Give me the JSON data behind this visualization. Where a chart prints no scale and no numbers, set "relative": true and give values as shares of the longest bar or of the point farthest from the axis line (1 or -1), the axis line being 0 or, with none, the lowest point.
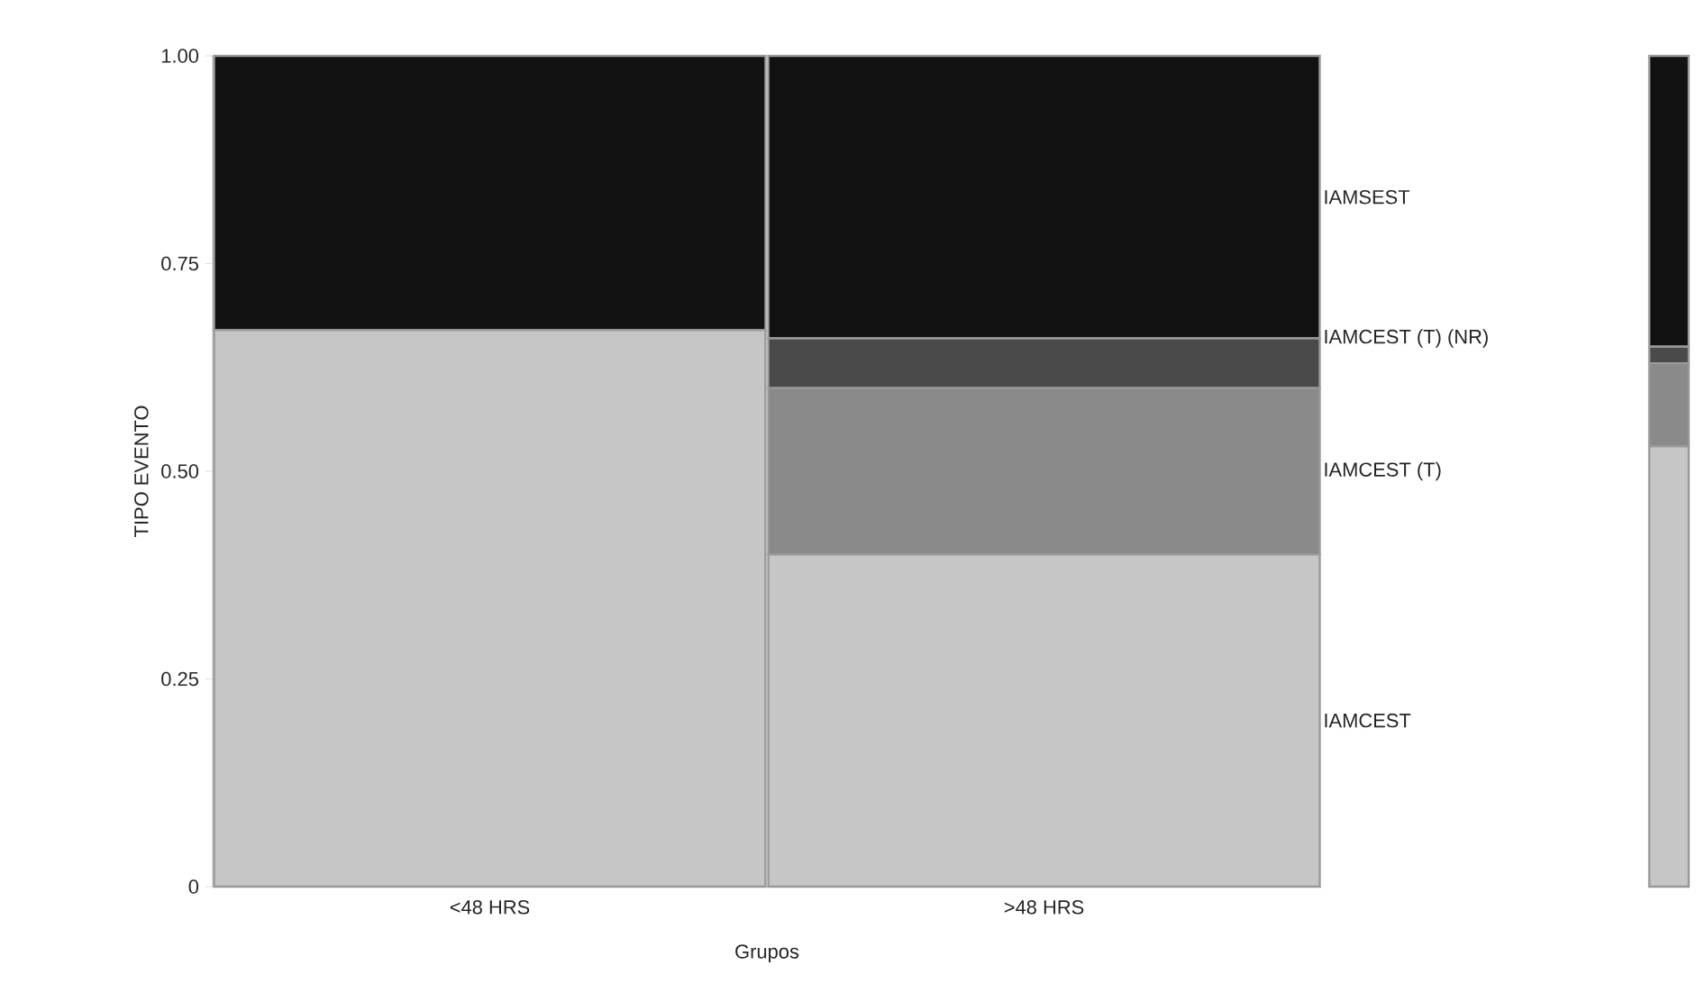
{
  "chart_data": [
    {
      "type": "bar",
      "stacked": true,
      "xlabel": "Grupos",
      "ylabel": "TIPO EVENTO",
      "categories": [
        "<48 HRS",
        ">48 HRS"
      ],
      "series": [
        {
          "name": "IAMCEST",
          "color": "#c6c6c6",
          "values": [
            0.67,
            0.4
          ]
        },
        {
          "name": "IAMCEST (T)",
          "color": "#8a8a8a",
          "values": [
            0,
            0.2
          ]
        },
        {
          "name": "IAMCEST (T) (NR)",
          "color": "#4a4a4a",
          "values": [
            0,
            0.06
          ]
        },
        {
          "name": "IAMSEST",
          "color": "#121212",
          "values": [
            0.33,
            0.34
          ]
        }
      ],
      "ylim": [
        0,
        1
      ],
      "yticks": [
        0,
        0.25,
        {
          "value": 0.5,
          "label": "0.50"
        },
        0.75,
        {
          "value": 1,
          "label": "1.00"
        }
      ],
      "grid": false,
      "legend": false
    },
    {
      "type": "bar",
      "stacked": true,
      "relative": true,
      "categories": [
        null
      ],
      "series": [
        {
          "color": "#c6c6c6",
          "values": [
            0.53
          ]
        },
        {
          "color": "#8a8a8a",
          "values": [
            0.1
          ]
        },
        {
          "color": "#4a4a4a",
          "values": [
            0.02
          ]
        },
        {
          "color": "#121212",
          "values": [
            0.35
          ]
        }
      ]
    }
  ]
}
